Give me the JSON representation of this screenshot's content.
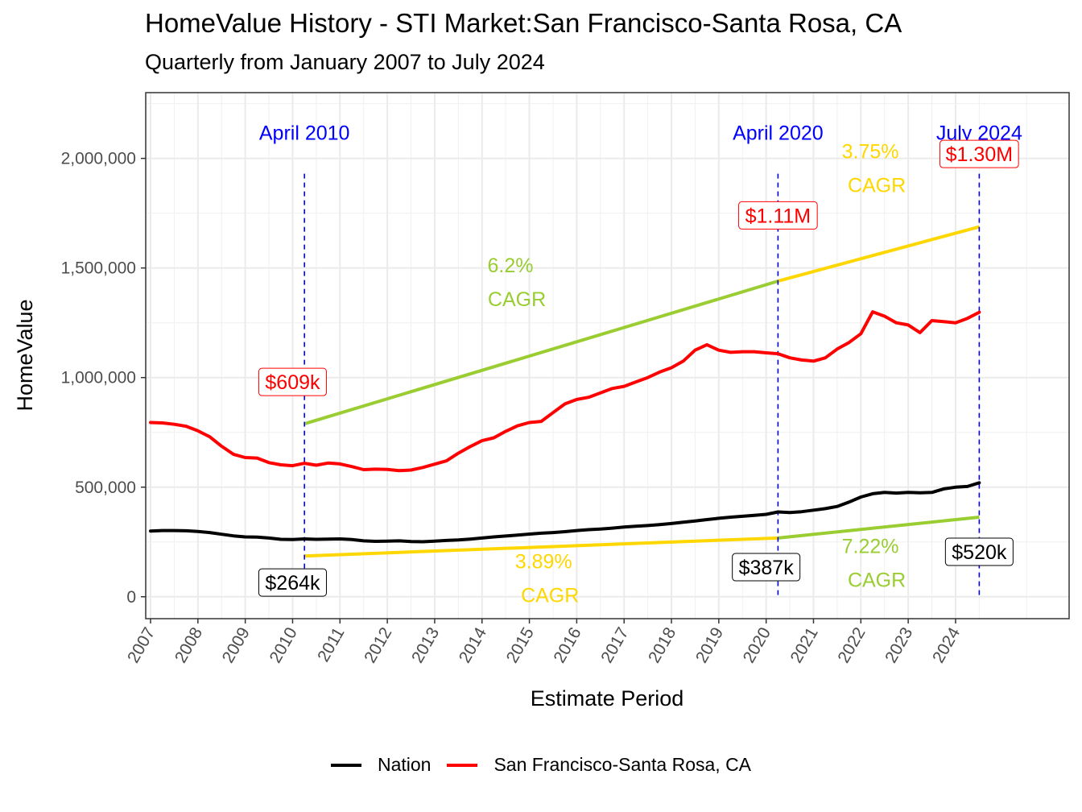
{
  "title": "HomeValue History - STI Market:San Francisco-Santa Rosa, CA",
  "subtitle": "Quarterly from January 2007 to July 2024",
  "colors": {
    "sf": "#ff0000",
    "nation": "#000000",
    "green": "#9acd32",
    "gold": "#ffd700",
    "blue": "#0000ff"
  },
  "chart_data": {
    "type": "line",
    "xlabel": "Estimate Period",
    "ylabel": "HomeValue",
    "xlim": [
      2007,
      2026.5
    ],
    "ylim": [
      -100000,
      2300000
    ],
    "x_ticks": [
      "2007",
      "2008",
      "2009",
      "2010",
      "2011",
      "2012",
      "2013",
      "2014",
      "2015",
      "2016",
      "2017",
      "2018",
      "2019",
      "2020",
      "2021",
      "2022",
      "2023",
      "2024"
    ],
    "y_ticks": [
      "0",
      "500,000",
      "1,000,000",
      "1,500,000",
      "2,000,000"
    ],
    "grid": true,
    "legend_position": "bottom",
    "series": [
      {
        "name": "Nation",
        "color": "#000000",
        "x": [
          2007.0,
          2007.25,
          2007.5,
          2007.75,
          2008.0,
          2008.25,
          2008.5,
          2008.75,
          2009.0,
          2009.25,
          2009.5,
          2009.75,
          2010.0,
          2010.25,
          2010.5,
          2010.75,
          2011.0,
          2011.25,
          2011.5,
          2011.75,
          2012.0,
          2012.25,
          2012.5,
          2012.75,
          2013.0,
          2013.25,
          2013.5,
          2013.75,
          2014.0,
          2014.25,
          2014.5,
          2014.75,
          2015.0,
          2015.25,
          2015.5,
          2015.75,
          2016.0,
          2016.25,
          2016.5,
          2016.75,
          2017.0,
          2017.25,
          2017.5,
          2017.75,
          2018.0,
          2018.25,
          2018.5,
          2018.75,
          2019.0,
          2019.25,
          2019.5,
          2019.75,
          2020.0,
          2020.25,
          2020.5,
          2020.75,
          2021.0,
          2021.25,
          2021.5,
          2021.75,
          2022.0,
          2022.25,
          2022.5,
          2022.75,
          2023.0,
          2023.25,
          2023.5,
          2023.75,
          2024.0,
          2024.25,
          2024.5
        ],
        "values": [
          300000,
          302000,
          302000,
          301000,
          298000,
          293000,
          285000,
          278000,
          273000,
          272000,
          268000,
          262000,
          261000,
          264000,
          262000,
          263000,
          264000,
          261000,
          255000,
          253000,
          254000,
          255000,
          252000,
          251000,
          254000,
          257000,
          259000,
          263000,
          268000,
          273000,
          277000,
          281000,
          286000,
          290000,
          293000,
          297000,
          302000,
          306000,
          309000,
          313000,
          318000,
          322000,
          325000,
          329000,
          334000,
          340000,
          346000,
          352000,
          358000,
          363000,
          367000,
          371000,
          376000,
          387000,
          384000,
          388000,
          395000,
          402000,
          412000,
          432000,
          455000,
          470000,
          476000,
          473000,
          476000,
          474000,
          476000,
          492000,
          500000,
          503000,
          520000
        ]
      },
      {
        "name": "San Francisco-Santa Rosa, CA",
        "color": "#ff0000",
        "x": [
          2007.0,
          2007.25,
          2007.5,
          2007.75,
          2008.0,
          2008.25,
          2008.5,
          2008.75,
          2009.0,
          2009.25,
          2009.5,
          2009.75,
          2010.0,
          2010.25,
          2010.5,
          2010.75,
          2011.0,
          2011.25,
          2011.5,
          2011.75,
          2012.0,
          2012.25,
          2012.5,
          2012.75,
          2013.0,
          2013.25,
          2013.5,
          2013.75,
          2014.0,
          2014.25,
          2014.5,
          2014.75,
          2015.0,
          2015.25,
          2015.5,
          2015.75,
          2016.0,
          2016.25,
          2016.5,
          2016.75,
          2017.0,
          2017.25,
          2017.5,
          2017.75,
          2018.0,
          2018.25,
          2018.5,
          2018.75,
          2019.0,
          2019.25,
          2019.5,
          2019.75,
          2020.0,
          2020.25,
          2020.5,
          2020.75,
          2021.0,
          2021.25,
          2021.5,
          2021.75,
          2022.0,
          2022.25,
          2022.5,
          2022.75,
          2023.0,
          2023.25,
          2023.5,
          2023.75,
          2024.0,
          2024.25,
          2024.5
        ],
        "values": [
          795000,
          793000,
          787000,
          778000,
          757000,
          730000,
          687000,
          650000,
          635000,
          633000,
          612000,
          602000,
          598000,
          609000,
          600000,
          610000,
          606000,
          594000,
          580000,
          582000,
          581000,
          575000,
          578000,
          590000,
          605000,
          620000,
          655000,
          685000,
          712000,
          725000,
          755000,
          780000,
          795000,
          800000,
          840000,
          880000,
          900000,
          910000,
          930000,
          950000,
          960000,
          980000,
          1000000,
          1025000,
          1045000,
          1075000,
          1125000,
          1150000,
          1125000,
          1115000,
          1118000,
          1118000,
          1113000,
          1109000,
          1090000,
          1080000,
          1075000,
          1090000,
          1130000,
          1160000,
          1200000,
          1300000,
          1280000,
          1250000,
          1240000,
          1205000,
          1260000,
          1255000,
          1250000,
          1270000,
          1298000
        ]
      }
    ],
    "trend_lines": [
      {
        "label": "6.2% CAGR",
        "color": "#9acd32",
        "x": [
          2010.25,
          2020.25
        ],
        "y": [
          789000,
          1440000
        ]
      },
      {
        "label": "3.75% CAGR",
        "color": "#ffd700",
        "x": [
          2020.25,
          2024.5
        ],
        "y": [
          1440000,
          1688000
        ]
      },
      {
        "label": "3.89% CAGR",
        "color": "#ffd700",
        "x": [
          2010.25,
          2020.25
        ],
        "y": [
          186000,
          268000
        ]
      },
      {
        "label": "7.22% CAGR",
        "color": "#9acd32",
        "x": [
          2020.25,
          2024.5
        ],
        "y": [
          268000,
          363000
        ]
      }
    ],
    "annotations": {
      "vlines": [
        {
          "label": "April 2010",
          "x": 2010.25
        },
        {
          "label": "April 2020",
          "x": 2020.25
        },
        {
          "label": "July 2024",
          "x": 2024.5
        }
      ],
      "cagr_labels": [
        {
          "line1": "6.2%",
          "line2": "CAGR",
          "color": "#9acd32",
          "x": 2014.6,
          "y": 1480000
        },
        {
          "line1": "3.75%",
          "line2": "CAGR",
          "color": "#ffd700",
          "x": 2022.2,
          "y": 2000000
        },
        {
          "line1": "3.89%",
          "line2": "CAGR",
          "color": "#ffd700",
          "x": 2015.3,
          "y": 130000
        },
        {
          "line1": "7.22%",
          "line2": "CAGR",
          "color": "#9acd32",
          "x": 2022.2,
          "y": 200000
        }
      ],
      "value_labels": [
        {
          "text": "$609k",
          "color": "#ff0000",
          "x": 2010.0,
          "y": 980000
        },
        {
          "text": "$1.11M",
          "color": "#ff0000",
          "x": 2020.25,
          "y": 1740000
        },
        {
          "text": "$1.30M",
          "color": "#ff0000",
          "x": 2024.5,
          "y": 2020000
        },
        {
          "text": "$264k",
          "color": "#000000",
          "x": 2010.0,
          "y": 65000
        },
        {
          "text": "$387k",
          "color": "#000000",
          "x": 2020.0,
          "y": 135000
        },
        {
          "text": "$520k",
          "color": "#000000",
          "x": 2024.5,
          "y": 205000
        }
      ]
    }
  }
}
